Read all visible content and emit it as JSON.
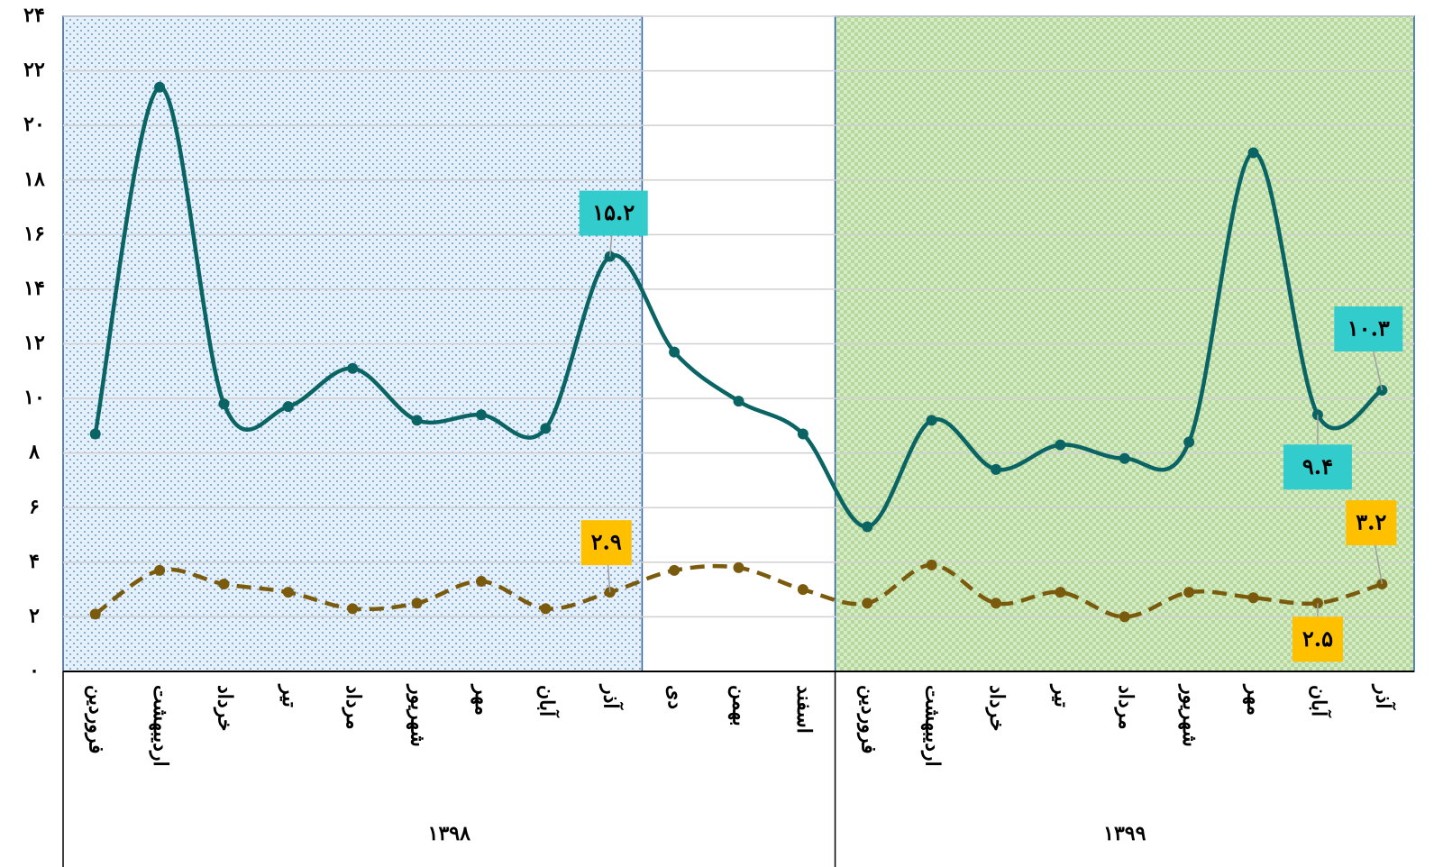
{
  "chart_data": {
    "type": "line",
    "groups": [
      {
        "name": "۱۳۹۸",
        "categories": [
          "فروردین",
          "اردیبهشت",
          "خرداد",
          "تیر",
          "مرداد",
          "شهریور",
          "مهر",
          "آبان",
          "آذر",
          "دی",
          "بهمن",
          "اسفند"
        ]
      },
      {
        "name": "۱۳۹۹",
        "categories": [
          "فروردین",
          "اردیبهشت",
          "خرداد",
          "تیر",
          "مرداد",
          "شهریور",
          "مهر",
          "آبان",
          "آذر"
        ]
      }
    ],
    "series": [
      {
        "color": "#0b6464",
        "dashed": false,
        "values": [
          8.7,
          21.4,
          9.8,
          9.7,
          11.1,
          9.2,
          9.4,
          8.9,
          15.2,
          11.7,
          9.9,
          8.7,
          5.3,
          9.2,
          7.4,
          8.3,
          7.8,
          8.4,
          19.0,
          9.4,
          10.3
        ],
        "value_labels": [
          null,
          null,
          null,
          null,
          null,
          null,
          null,
          null,
          "۱۵.۲",
          null,
          null,
          null,
          null,
          null,
          null,
          null,
          null,
          null,
          null,
          "۹.۴",
          "۱۰.۳"
        ],
        "label_color": "#33cccc"
      },
      {
        "color": "#7a5a0c",
        "dashed": true,
        "values": [
          2.1,
          3.7,
          3.2,
          2.9,
          2.3,
          2.5,
          3.3,
          2.3,
          2.9,
          3.7,
          3.8,
          3.0,
          2.5,
          3.9,
          2.5,
          2.9,
          2.0,
          2.9,
          2.7,
          2.5,
          3.2
        ],
        "value_labels": [
          null,
          null,
          null,
          null,
          null,
          null,
          null,
          null,
          "۲.۹",
          null,
          null,
          null,
          null,
          null,
          null,
          null,
          null,
          null,
          null,
          "۲.۵",
          "۳.۲"
        ],
        "label_color": "#ffc000"
      }
    ],
    "ylim": [
      0,
      24
    ],
    "yticks": [
      {
        "value": 0,
        "label": "۰"
      },
      {
        "value": 2,
        "label": "۲"
      },
      {
        "value": 4,
        "label": "۴"
      },
      {
        "value": 6,
        "label": "۶"
      },
      {
        "value": 8,
        "label": "۸"
      },
      {
        "value": 10,
        "label": "۱۰"
      },
      {
        "value": 12,
        "label": "۱۲"
      },
      {
        "value": 14,
        "label": "۱۴"
      },
      {
        "value": 16,
        "label": "۱۶"
      },
      {
        "value": 18,
        "label": "۱۸"
      },
      {
        "value": 20,
        "label": "۲۰"
      },
      {
        "value": 22,
        "label": "۲۲"
      },
      {
        "value": 24,
        "label": "۲۴"
      }
    ],
    "grid": true
  }
}
